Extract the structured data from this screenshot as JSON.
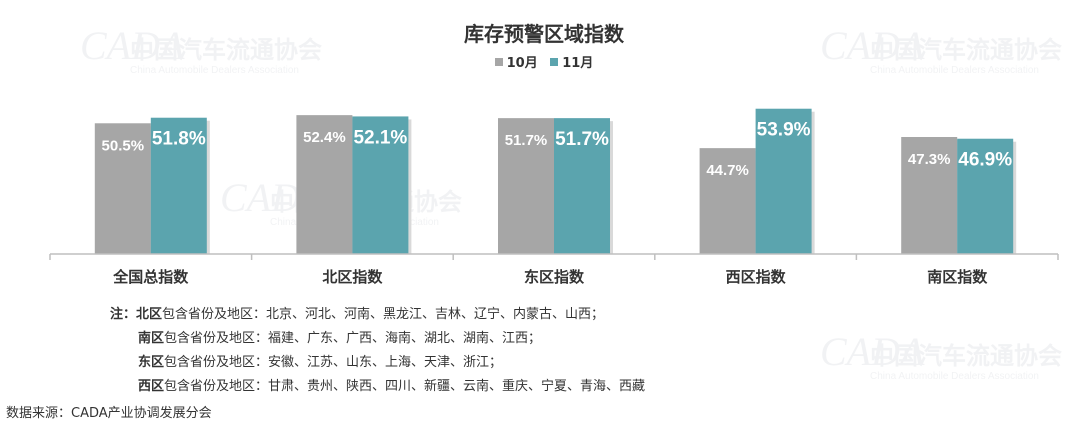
{
  "watermark": {
    "cn": "中国汽车流通协会",
    "en": "China Automobile Dealers Association",
    "logo": "CADA"
  },
  "chart_data": {
    "type": "bar",
    "title": "库存预警区域指数",
    "categories": [
      "全国总指数",
      "北区指数",
      "东区指数",
      "西区指数",
      "南区指数"
    ],
    "series": [
      {
        "name": "10月",
        "values": [
          50.5,
          52.4,
          51.7,
          44.7,
          47.3
        ],
        "labels": [
          "50.5%",
          "52.4%",
          "51.7%",
          "44.7%",
          "47.3%"
        ],
        "color": "#a6a6a6"
      },
      {
        "name": "11月",
        "values": [
          51.8,
          52.1,
          51.7,
          53.9,
          46.9
        ],
        "labels": [
          "51.8%",
          "52.1%",
          "51.7%",
          "53.9%",
          "46.9%"
        ],
        "color": "#5ba4ae"
      }
    ],
    "ylim": [
      20,
      55
    ],
    "grid": false,
    "legend": "top-center"
  },
  "notes": {
    "prefix": "注：",
    "lines": [
      {
        "region": "北区",
        "text": "包含省份及地区：北京、河北、河南、黑龙江、吉林、辽宁、内蒙古、山西；"
      },
      {
        "region": "南区",
        "text": "包含省份及地区：福建、广东、广西、海南、湖北、湖南、江西；"
      },
      {
        "region": "东区",
        "text": "包含省份及地区：安徽、江苏、山东、上海、天津、浙江；"
      },
      {
        "region": "西区",
        "text": "包含省份及地区：甘肃、贵州、陕西、四川、新疆、云南、重庆、宁夏、青海、西藏"
      }
    ]
  },
  "source": "数据来源：CADA产业协调发展分会"
}
